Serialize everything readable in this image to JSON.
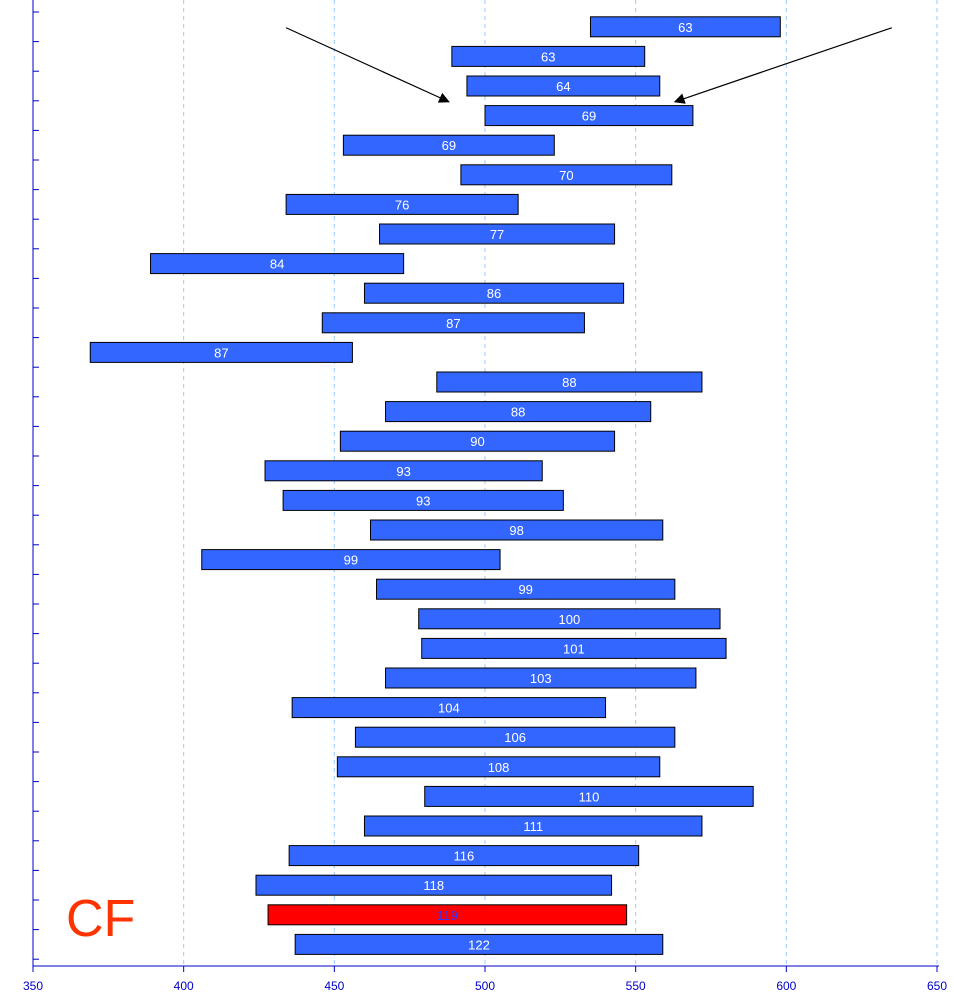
{
  "chart_data": {
    "type": "bar",
    "orientation": "horizontal-range",
    "title": "",
    "xlabel": "",
    "ylabel": "",
    "xlim": [
      350,
      650
    ],
    "x_ticks": [
      350,
      400,
      450,
      500,
      550,
      600,
      650
    ],
    "grid": "vertical-dashed",
    "colors": {
      "bar": "#3366ff",
      "highlight": "#ff0000",
      "axis": "#0000cc",
      "grid": "#99ccff",
      "annotation": "#ff3300",
      "bar_text": "#ffffff",
      "highlight_text": "#3333ff"
    },
    "bars": [
      {
        "label": "63",
        "start": 535,
        "end": 598
      },
      {
        "label": "63",
        "start": 489,
        "end": 553
      },
      {
        "label": "64",
        "start": 494,
        "end": 558
      },
      {
        "label": "69",
        "start": 500,
        "end": 569
      },
      {
        "label": "69",
        "start": 453,
        "end": 523
      },
      {
        "label": "70",
        "start": 492,
        "end": 562
      },
      {
        "label": "76",
        "start": 434,
        "end": 511
      },
      {
        "label": "77",
        "start": 465,
        "end": 543
      },
      {
        "label": "84",
        "start": 389,
        "end": 473
      },
      {
        "label": "86",
        "start": 460,
        "end": 546
      },
      {
        "label": "87",
        "start": 446,
        "end": 533
      },
      {
        "label": "87",
        "start": 369,
        "end": 456
      },
      {
        "label": "88",
        "start": 484,
        "end": 572
      },
      {
        "label": "88",
        "start": 467,
        "end": 555
      },
      {
        "label": "90",
        "start": 452,
        "end": 543
      },
      {
        "label": "93",
        "start": 427,
        "end": 519
      },
      {
        "label": "93",
        "start": 433,
        "end": 526
      },
      {
        "label": "98",
        "start": 462,
        "end": 559
      },
      {
        "label": "99",
        "start": 406,
        "end": 505
      },
      {
        "label": "99",
        "start": 464,
        "end": 563
      },
      {
        "label": "100",
        "start": 478,
        "end": 578
      },
      {
        "label": "101",
        "start": 479,
        "end": 580
      },
      {
        "label": "103",
        "start": 467,
        "end": 570
      },
      {
        "label": "104",
        "start": 436,
        "end": 540
      },
      {
        "label": "106",
        "start": 457,
        "end": 563
      },
      {
        "label": "108",
        "start": 451,
        "end": 558
      },
      {
        "label": "110",
        "start": 480,
        "end": 589
      },
      {
        "label": "111",
        "start": 460,
        "end": 572
      },
      {
        "label": "116",
        "start": 435,
        "end": 551
      },
      {
        "label": "118",
        "start": 424,
        "end": 542
      },
      {
        "label": "119",
        "start": 428,
        "end": 547,
        "highlight": true
      },
      {
        "label": "122",
        "start": 437,
        "end": 559
      }
    ],
    "annotations": {
      "text_label": "CF",
      "arrows": [
        {
          "from": [
            434,
            39.6
          ],
          "to": [
            488,
            36.1
          ]
        },
        {
          "from": [
            635,
            39.6
          ],
          "to": [
            563,
            36.1
          ]
        }
      ]
    }
  }
}
